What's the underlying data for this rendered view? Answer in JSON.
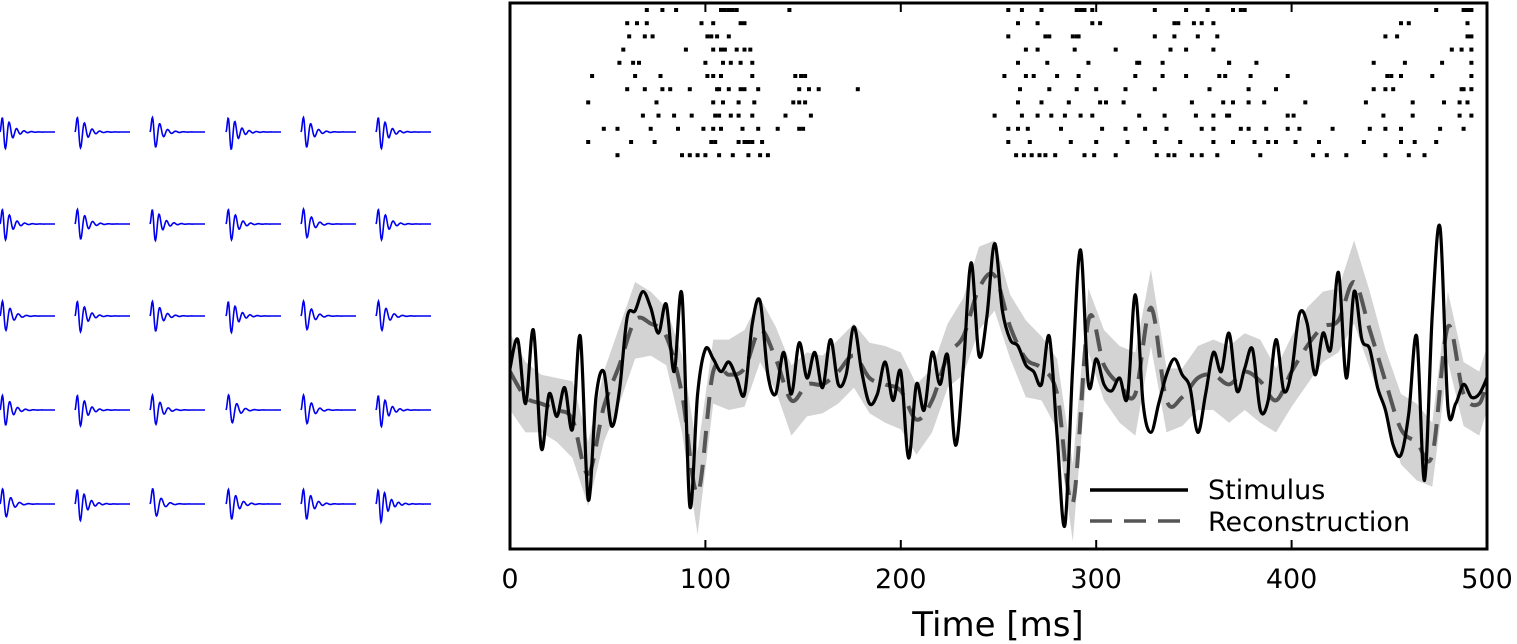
{
  "colors": {
    "filter": "#0000ee",
    "stimulus": "#000000",
    "reconstruction": "#555555",
    "band": "#d3d3d3",
    "spike": "#000000"
  },
  "chart_data": [
    {
      "type": "line",
      "panel": "filter-bank",
      "rows": 5,
      "cols": 6,
      "description_of_grid": "30 small waveforms",
      "filters": [
        [
          0.55,
          0.5,
          0.45,
          0.6,
          0.45,
          0.55
        ],
        [
          0.5,
          0.45,
          0.55,
          0.5,
          0.35,
          0.5
        ],
        [
          0.4,
          0.5,
          0.45,
          0.55,
          0.35,
          0.4
        ],
        [
          0.45,
          0.5,
          0.4,
          0.3,
          0.35,
          0.55
        ],
        [
          0.3,
          0.55,
          0.25,
          0.45,
          0.45,
          0.65
        ]
      ]
    },
    {
      "type": "line",
      "panel": "reconstruction",
      "xlabel": "Time [ms]",
      "xlim": [
        0,
        500
      ],
      "xticks": [
        0,
        100,
        200,
        300,
        400,
        500
      ],
      "legend": {
        "placement": "lower-right",
        "entries": [
          "Stimulus",
          "Reconstruction"
        ]
      },
      "stimulus": {
        "name": "Stimulus",
        "x": [
          0,
          4,
          8,
          12,
          16,
          20,
          24,
          28,
          32,
          36,
          40,
          44,
          48,
          52,
          56,
          60,
          64,
          68,
          72,
          76,
          80,
          84,
          88,
          92,
          96,
          100,
          104,
          108,
          112,
          116,
          120,
          124,
          128,
          132,
          136,
          140,
          144,
          148,
          152,
          156,
          160,
          164,
          168,
          172,
          176,
          180,
          184,
          188,
          192,
          196,
          200,
          204,
          208,
          212,
          216,
          220,
          224,
          228,
          232,
          236,
          240,
          244,
          248,
          252,
          256,
          260,
          264,
          268,
          272,
          276,
          280,
          284,
          288,
          292,
          296,
          300,
          304,
          308,
          312,
          316,
          320,
          324,
          328,
          332,
          336,
          340,
          344,
          348,
          352,
          356,
          360,
          364,
          368,
          372,
          376,
          380,
          384,
          388,
          392,
          396,
          400,
          404,
          408,
          412,
          416,
          420,
          424,
          428,
          432,
          436,
          440,
          444,
          448,
          452,
          456,
          460,
          464,
          468,
          472,
          476,
          480,
          484,
          488,
          492,
          496,
          500
        ],
        "y": [
          0.3,
          1.2,
          -0.8,
          1.5,
          -2.2,
          -0.5,
          -1.2,
          -0.3,
          -1.6,
          1.3,
          -3.8,
          -0.6,
          0.2,
          -1.5,
          -0.4,
          1.9,
          2.1,
          2.7,
          2.2,
          1.4,
          2.3,
          0.2,
          2.6,
          -4.0,
          -0.5,
          0.9,
          0.6,
          0.2,
          0.5,
          0.0,
          -0.5,
          1.7,
          2.4,
          0.1,
          -0.5,
          0.8,
          -0.5,
          1.1,
          0.0,
          0.8,
          -0.3,
          1.2,
          -0.2,
          0.1,
          1.6,
          0.2,
          -0.8,
          -0.5,
          0.5,
          -0.7,
          0.2,
          -2.5,
          -0.2,
          -1.0,
          0.8,
          -0.2,
          0.7,
          -2.1,
          0.3,
          3.6,
          0.7,
          1.9,
          4.2,
          2.1,
          1.2,
          1.0,
          0.4,
          0.2,
          -0.2,
          1.3,
          -1.8,
          -4.6,
          0.4,
          4.0,
          -0.2,
          0.6,
          -0.2,
          -0.4,
          0.0,
          -0.6,
          2.6,
          -0.8,
          -1.7,
          -0.8,
          0.1,
          0.6,
          0.1,
          -0.3,
          -1.7,
          -0.5,
          0.8,
          0.2,
          1.4,
          -0.4,
          0.3,
          0.9,
          -1.0,
          -0.7,
          1.2,
          -0.4,
          0.2,
          2.0,
          1.7,
          0.1,
          1.4,
          0.9,
          3.3,
          0.0,
          2.7,
          1.2,
          0.9,
          -0.3,
          -1.0,
          -2.1,
          -2.4,
          -1.1,
          1.3,
          -3.2,
          2.0,
          4.7,
          -0.9,
          -0.8,
          -0.2,
          -0.6,
          -0.5,
          0.0
        ]
      },
      "reconstruction": {
        "name": "Reconstruction",
        "x": [
          0,
          8,
          16,
          24,
          32,
          40,
          48,
          56,
          64,
          72,
          80,
          88,
          96,
          104,
          112,
          120,
          128,
          136,
          144,
          152,
          160,
          168,
          176,
          184,
          192,
          200,
          208,
          216,
          224,
          232,
          240,
          248,
          256,
          264,
          272,
          280,
          288,
          296,
          304,
          312,
          320,
          328,
          336,
          344,
          352,
          360,
          368,
          376,
          384,
          392,
          400,
          408,
          416,
          424,
          432,
          440,
          448,
          456,
          464,
          472,
          480,
          488,
          496,
          500
        ],
        "y": [
          0.2,
          -0.6,
          -0.8,
          -1.0,
          -1.3,
          -3.0,
          -0.9,
          0.4,
          1.8,
          1.7,
          1.3,
          -0.5,
          -3.6,
          0.2,
          0.1,
          0.3,
          1.5,
          0.6,
          -0.7,
          -0.2,
          -0.2,
          0.2,
          0.7,
          0.0,
          -0.2,
          -0.4,
          -1.3,
          -0.7,
          0.7,
          1.3,
          2.8,
          3.2,
          1.6,
          0.6,
          0.3,
          -0.5,
          -3.9,
          1.8,
          0.4,
          -0.2,
          -0.5,
          2.2,
          -0.7,
          -0.6,
          0.0,
          0.1,
          -0.2,
          0.2,
          -0.1,
          -0.7,
          0.2,
          1.0,
          1.6,
          1.8,
          3.0,
          1.5,
          -0.1,
          -1.6,
          -2.0,
          -2.4,
          1.6,
          -0.5,
          -0.8,
          0.0
        ]
      },
      "band_halfwidth": [
        1.2,
        1.1,
        0.9,
        1.0,
        1.2,
        1.0,
        1.1,
        1.2,
        1.2,
        1.0,
        0.9,
        1.2,
        1.3,
        1.0,
        1.1,
        1.2,
        1.0,
        1.0,
        1.1,
        1.0,
        0.9,
        1.0,
        1.0,
        1.1,
        1.2,
        1.2,
        1.1,
        1.0,
        1.0,
        1.2,
        1.3,
        1.1,
        1.0,
        1.2,
        1.0,
        1.1,
        1.2,
        1.0,
        1.1,
        1.2,
        1.3,
        1.2,
        1.0,
        0.9,
        1.0,
        1.1,
        1.2,
        1.2,
        1.3,
        1.0,
        1.1,
        1.2,
        1.1,
        1.0,
        1.3,
        1.2,
        1.0,
        1.1,
        1.2,
        1.0,
        1.1,
        1.0,
        1.0,
        1.0
      ],
      "spike_trains": {
        "rows": 12,
        "spikes": [
          [
            70,
            78,
            85,
            108,
            110,
            112,
            113,
            114,
            116,
            143,
            255,
            262,
            272,
            290,
            292,
            294,
            298,
            330,
            346,
            357,
            370,
            374,
            376,
            474,
            488,
            490,
            492
          ],
          [
            60,
            65,
            70,
            98,
            104,
            118,
            120,
            260,
            270,
            298,
            302,
            340,
            342,
            350,
            354,
            360,
            456,
            460,
            490
          ],
          [
            61,
            69,
            73,
            101,
            103,
            106,
            112,
            255,
            274,
            276,
            288,
            290,
            291,
            330,
            340,
            352,
            362,
            448,
            454,
            490,
            492
          ],
          [
            58,
            90,
            104,
            108,
            110,
            116,
            120,
            123,
            264,
            270,
            289,
            310,
            338,
            346,
            360,
            482,
            487,
            492
          ],
          [
            56,
            63,
            66,
            100,
            109,
            113,
            118,
            124,
            260,
            275,
            296,
            321,
            322,
            334,
            368,
            368,
            382,
            442,
            458,
            477,
            492
          ],
          [
            42,
            64,
            77,
            101,
            104,
            108,
            124,
            146,
            149,
            151,
            253,
            264,
            268,
            280,
            291,
            320,
            334,
            346,
            363,
            366,
            379,
            398,
            449,
            451,
            456,
            472,
            492
          ],
          [
            60,
            69,
            78,
            82,
            92,
            106,
            107,
            112,
            118,
            120,
            127,
            148,
            153,
            158,
            178,
            261,
            276,
            290,
            300,
            315,
            330,
            358,
            378,
            392,
            442,
            448,
            452,
            487,
            488,
            492
          ],
          [
            40,
            75,
            104,
            109,
            117,
            125,
            145,
            148,
            151,
            260,
            272,
            286,
            302,
            305,
            314,
            349,
            365,
            370,
            378,
            386,
            407,
            438,
            462,
            478,
            486,
            490
          ],
          [
            68,
            76,
            84,
            93,
            105,
            107,
            113,
            117,
            124,
            141,
            154,
            248,
            262,
            270,
            277,
            284,
            292,
            298,
            322,
            335,
            351,
            360,
            367,
            368,
            398,
            401,
            447,
            462,
            486,
            492
          ],
          [
            48,
            55,
            72,
            86,
            99,
            104,
            108,
            119,
            127,
            137,
            148,
            150,
            255,
            260,
            265,
            282,
            303,
            315,
            325,
            336,
            354,
            360,
            374,
            378,
            387,
            398,
            404,
            421,
            440,
            448,
            456,
            476,
            488
          ],
          [
            40,
            62,
            74,
            103,
            105,
            117,
            120,
            122,
            124,
            129,
            255,
            266,
            287,
            300,
            316,
            330,
            343,
            360,
            370,
            381,
            388,
            392,
            402,
            414,
            437,
            456,
            463,
            474
          ],
          [
            55,
            88,
            92,
            96,
            100,
            107,
            114,
            122,
            128,
            132,
            259,
            263,
            267,
            271,
            274,
            279,
            294,
            299,
            310,
            331,
            337,
            340,
            349,
            354,
            362,
            384,
            411,
            418,
            428,
            448,
            460,
            468
          ]
        ]
      }
    }
  ]
}
